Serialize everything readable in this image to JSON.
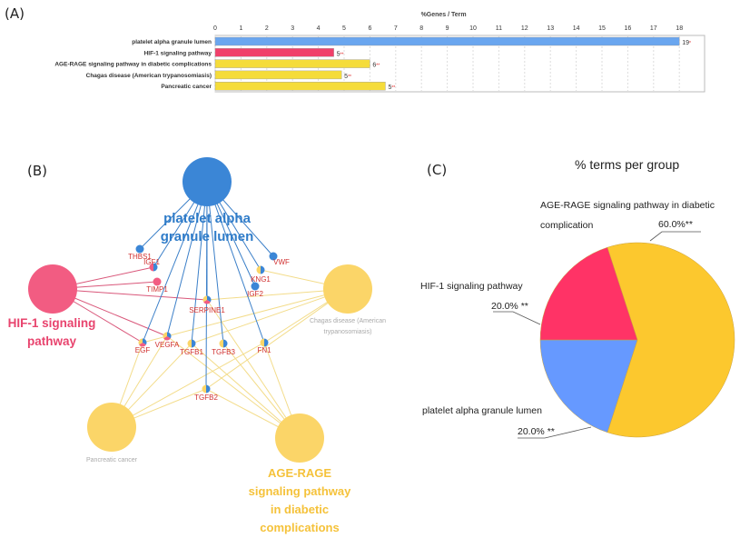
{
  "panels": {
    "a": "(A)",
    "b": "(B)",
    "c": "(C)"
  },
  "chart_data": [
    {
      "type": "bar",
      "orientation": "horizontal",
      "title": "%Genes / Term",
      "xlim": [
        0,
        18
      ],
      "ticks": [
        "0",
        "1",
        "2",
        "3",
        "4",
        "5",
        "6",
        "7",
        "8",
        "9",
        "10",
        "11",
        "12",
        "13",
        "14",
        "15",
        "16",
        "17",
        "18"
      ],
      "grid": true,
      "categories": [
        "platelet alpha granule lumen",
        "HIF-1 signaling pathway",
        "AGE-RAGE signaling pathway in diabetic complications",
        "Chagas disease (American trypanosomiasis)",
        "Pancreatic cancer"
      ],
      "values": [
        18.0,
        4.6,
        6.0,
        4.9,
        6.6
      ],
      "count_labels": [
        "19",
        "5",
        "6",
        "5",
        "5"
      ],
      "stars": [
        "*",
        "**",
        "**",
        "**",
        "**"
      ],
      "colors": [
        "#6aa6ef",
        "#f0406a",
        "#f5dc3a",
        "#f5dc3a",
        "#f5dc3a"
      ]
    },
    {
      "type": "pie",
      "title": "% terms per group",
      "slices": [
        {
          "label": "AGE-RAGE signaling pathway in diabetic complication",
          "label_lines": [
            "AGE-RAGE signaling pathway in diabetic",
            "complication"
          ],
          "value": 60.0,
          "pct": "60.0%**",
          "color": "#fcc82e"
        },
        {
          "label": "platelet alpha granule lumen",
          "value": 20.0,
          "pct": "20.0% **",
          "color": "#6699ff"
        },
        {
          "label": "HIF-1 signaling pathway",
          "value": 20.0,
          "pct": "20.0% **",
          "color": "#ff3366"
        }
      ]
    }
  ],
  "network": {
    "terms": [
      {
        "id": "platelet",
        "lines": [
          "platelet alpha",
          "granule lumen"
        ],
        "color": "#3b86d6",
        "label_color": "#2f7cc9"
      },
      {
        "id": "hif",
        "lines": [
          "HIF-1 signaling",
          "pathway"
        ],
        "color": "#f25c82",
        "label_color": "#e8446e"
      },
      {
        "id": "chagas",
        "lines": [
          "Chagas disease (American",
          "trypanosomiasis)"
        ],
        "color": "#fbd568",
        "label_color": "#aaaaaa"
      },
      {
        "id": "pancreatic",
        "lines": [
          "Pancreatic cancer"
        ],
        "color": "#fbd568",
        "label_color": "#aaaaaa"
      },
      {
        "id": "age",
        "lines": [
          "AGE-RAGE",
          "signaling pathway",
          "in diabetic",
          "complications"
        ],
        "color": "#fbd568",
        "label_color": "#f5c23a"
      }
    ],
    "genes": [
      "THBS1",
      "IGF1",
      "TIMP1",
      "VWF",
      "KNG1",
      "IGF2",
      "SERPINE1",
      "EGF",
      "VEGFA",
      "TGFB1",
      "TGFB3",
      "FN1",
      "TGFB2"
    ],
    "edges": {
      "platelet": [
        "THBS1",
        "IGF1",
        "VWF",
        "KNG1",
        "IGF2",
        "SERPINE1",
        "EGF",
        "VEGFA",
        "TGFB1",
        "TGFB3",
        "FN1",
        "TGFB2"
      ],
      "hif": [
        "IGF1",
        "TIMP1",
        "SERPINE1",
        "VEGFA",
        "EGF"
      ],
      "chagas": [
        "KNG1",
        "SERPINE1",
        "TGFB1",
        "TGFB2",
        "FN1",
        "EGF"
      ],
      "pancreatic": [
        "EGF",
        "VEGFA",
        "TGFB1",
        "TGFB2",
        "FN1"
      ],
      "age": [
        "SERPINE1",
        "TGFB1",
        "TGFB3",
        "FN1",
        "TGFB2",
        "VEGFA"
      ]
    }
  }
}
